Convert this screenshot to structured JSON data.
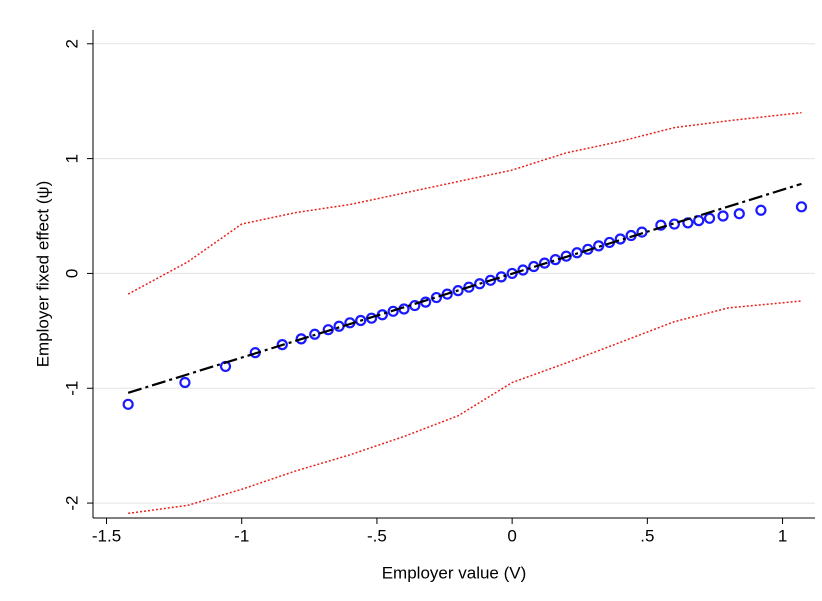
{
  "chart_data": {
    "type": "scatter",
    "xlabel": "Employer value (V)",
    "ylabel": "Employer fixed effect (ψ)",
    "xlim": [
      -1.55,
      1.12
    ],
    "ylim": [
      -2.13,
      2.12
    ],
    "xticks": [
      {
        "value": -1.5,
        "label": "-1.5"
      },
      -1,
      {
        "value": -0.5,
        "label": "-.5"
      },
      0,
      {
        "value": 0.5,
        "label": ".5"
      },
      1
    ],
    "yticks": [
      -2,
      -1,
      0,
      1,
      2
    ],
    "grid": true,
    "series": [
      {
        "kind": "scatter",
        "color": "#1a1aff",
        "x": [
          -1.42,
          -1.21,
          -1.06,
          -0.95,
          -0.85,
          -0.78,
          -0.73,
          -0.68,
          -0.64,
          -0.6,
          -0.56,
          -0.52,
          -0.48,
          -0.44,
          -0.4,
          -0.36,
          -0.32,
          -0.28,
          -0.24,
          -0.2,
          -0.16,
          -0.12,
          -0.08,
          -0.04,
          0,
          0.04,
          0.08,
          0.12,
          0.16,
          0.2,
          0.24,
          0.28,
          0.32,
          0.36,
          0.4,
          0.44,
          0.48,
          0.55,
          0.6,
          0.65,
          0.69,
          0.73,
          0.78,
          0.84,
          0.92,
          1.07
        ],
        "values": [
          -1.14,
          -0.95,
          -0.81,
          -0.69,
          -0.62,
          -0.57,
          -0.53,
          -0.49,
          -0.46,
          -0.43,
          -0.41,
          -0.39,
          -0.36,
          -0.33,
          -0.31,
          -0.28,
          -0.25,
          -0.21,
          -0.18,
          -0.15,
          -0.12,
          -0.09,
          -0.06,
          -0.03,
          0,
          0.03,
          0.06,
          0.09,
          0.12,
          0.15,
          0.18,
          0.21,
          0.24,
          0.27,
          0.3,
          0.33,
          0.36,
          0.42,
          0.43,
          0.44,
          0.46,
          0.48,
          0.5,
          0.52,
          0.55,
          0.58
        ]
      },
      {
        "kind": "line",
        "style": "dashdot",
        "color": "#000000",
        "x": [
          -1.42,
          1.07
        ],
        "values": [
          -1.04,
          0.78
        ]
      },
      {
        "kind": "line",
        "style": "dotted",
        "color": "#e8211a",
        "x": [
          -1.42,
          -1.2,
          -1.0,
          -0.8,
          -0.6,
          -0.4,
          -0.2,
          0,
          0.2,
          0.4,
          0.6,
          0.8,
          1.07
        ],
        "values": [
          -0.18,
          0.1,
          0.43,
          0.53,
          0.6,
          0.7,
          0.8,
          0.9,
          1.05,
          1.15,
          1.27,
          1.33,
          1.4
        ]
      },
      {
        "kind": "line",
        "style": "dotted",
        "color": "#e8211a",
        "x": [
          -1.42,
          -1.2,
          -1.0,
          -0.8,
          -0.6,
          -0.4,
          -0.2,
          0,
          0.2,
          0.4,
          0.6,
          0.8,
          1.07
        ],
        "values": [
          -2.09,
          -2.02,
          -1.88,
          -1.72,
          -1.58,
          -1.42,
          -1.24,
          -0.95,
          -0.78,
          -0.6,
          -0.42,
          -0.3,
          -0.24
        ]
      }
    ]
  }
}
